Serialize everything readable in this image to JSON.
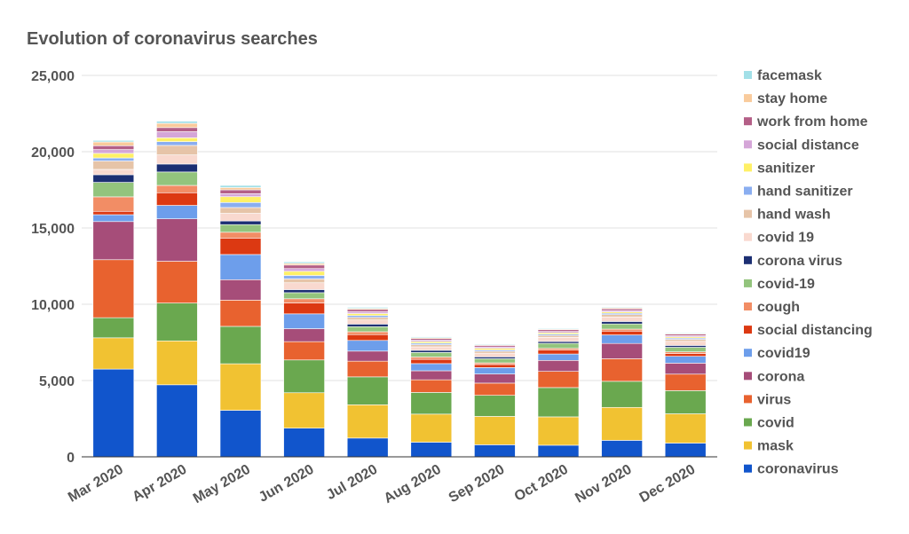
{
  "chart_data": {
    "type": "bar",
    "stacked": true,
    "title": "Evolution of coronavirus searches",
    "xlabel": "",
    "ylabel": "",
    "ylim": [
      0,
      25000
    ],
    "yticks": [
      0,
      5000,
      10000,
      15000,
      20000,
      25000
    ],
    "ytick_labels": [
      "0",
      "5,000",
      "10,000",
      "15,000",
      "20,000",
      "25,000"
    ],
    "grid": true,
    "legend_position": "right",
    "categories": [
      "Mar 2020",
      "Apr 2020",
      "May 2020",
      "Jun 2020",
      "Jul 2020",
      "Aug 2020",
      "Sep 2020",
      "Oct 2020",
      "Nov 2020",
      "Dec 2020"
    ],
    "series": [
      {
        "name": "coronavirus",
        "color": "#1155cc",
        "values": [
          5750,
          4720,
          3050,
          1880,
          1230,
          960,
          790,
          760,
          1080,
          900
        ]
      },
      {
        "name": "mask",
        "color": "#f1c232",
        "values": [
          2050,
          2880,
          3050,
          2320,
          2180,
          1840,
          1860,
          1860,
          2160,
          1920
        ]
      },
      {
        "name": "covid",
        "color": "#6aa84f",
        "values": [
          1320,
          2480,
          2450,
          2150,
          1830,
          1420,
          1380,
          1920,
          1710,
          1520
        ]
      },
      {
        "name": "virus",
        "color": "#e8622f",
        "values": [
          3800,
          2740,
          1720,
          1200,
          1030,
          830,
          800,
          1060,
          1480,
          1080
        ]
      },
      {
        "name": "corona",
        "color": "#a64d79",
        "values": [
          2500,
          2780,
          1340,
          850,
          660,
          590,
          600,
          720,
          1000,
          720
        ]
      },
      {
        "name": "covid19",
        "color": "#6d9eeb",
        "values": [
          450,
          880,
          1650,
          970,
          700,
          470,
          420,
          420,
          560,
          450
        ]
      },
      {
        "name": "social distancing",
        "color": "#dc3912",
        "values": [
          220,
          830,
          1080,
          720,
          380,
          280,
          200,
          260,
          250,
          180
        ]
      },
      {
        "name": "cough",
        "color": "#f28d65",
        "values": [
          950,
          480,
          380,
          270,
          190,
          150,
          110,
          110,
          130,
          110
        ]
      },
      {
        "name": "covid-19",
        "color": "#93c47d",
        "values": [
          950,
          880,
          500,
          400,
          330,
          300,
          270,
          330,
          340,
          300
        ]
      },
      {
        "name": "corona virus",
        "color": "#1c2f73",
        "values": [
          500,
          520,
          240,
          200,
          170,
          140,
          120,
          120,
          160,
          120
        ]
      },
      {
        "name": "covid 19",
        "color": "#f9d9cf",
        "values": [
          350,
          600,
          500,
          450,
          270,
          230,
          240,
          270,
          300,
          270
        ]
      },
      {
        "name": "hand wash",
        "color": "#e6c4a8",
        "values": [
          550,
          620,
          380,
          250,
          170,
          140,
          130,
          130,
          150,
          130
        ]
      },
      {
        "name": "hand sanitizer",
        "color": "#8aaef0",
        "values": [
          200,
          250,
          330,
          230,
          120,
          100,
          90,
          80,
          90,
          80
        ]
      },
      {
        "name": "sanitizer",
        "color": "#fff066",
        "values": [
          300,
          250,
          380,
          270,
          130,
          100,
          100,
          90,
          90,
          80
        ]
      },
      {
        "name": "social distance",
        "color": "#d5a6d8",
        "values": [
          250,
          400,
          200,
          180,
          120,
          100,
          90,
          90,
          90,
          80
        ]
      },
      {
        "name": "work from home",
        "color": "#b45f87",
        "values": [
          250,
          270,
          250,
          230,
          150,
          100,
          100,
          110,
          110,
          100
        ]
      },
      {
        "name": "stay home",
        "color": "#f9cb9c",
        "values": [
          250,
          280,
          150,
          110,
          70,
          60,
          50,
          50,
          60,
          50
        ]
      },
      {
        "name": "facemask",
        "color": "#a2e0e8",
        "values": [
          100,
          140,
          140,
          100,
          70,
          60,
          50,
          50,
          50,
          50
        ]
      }
    ]
  }
}
